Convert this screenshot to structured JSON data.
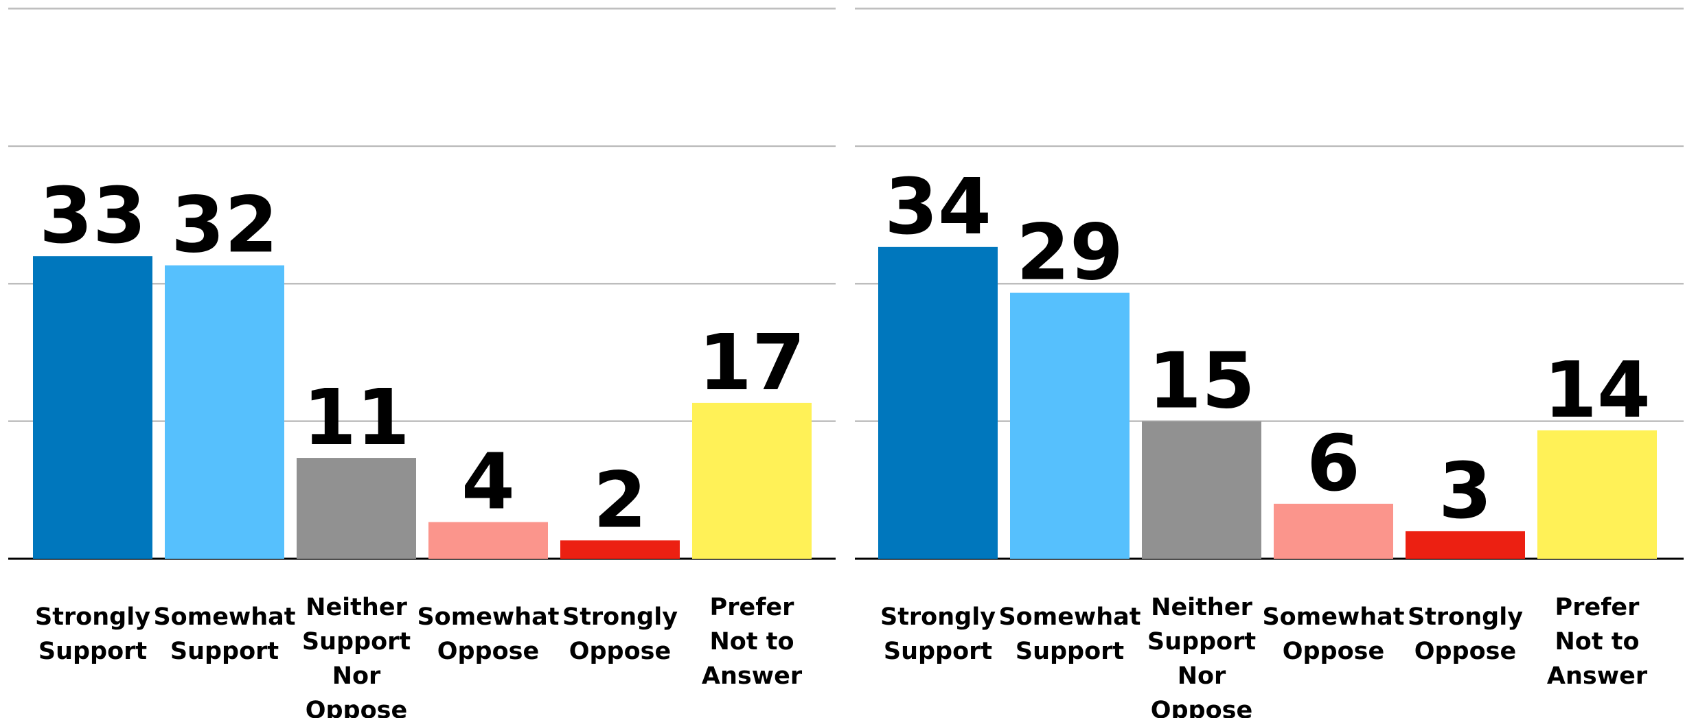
{
  "chart_data": [
    {
      "type": "bar",
      "categories": [
        "Strongly\nSupport",
        "Somewhat\nSupport",
        "Neither\nSupport\nNor\nOppose",
        "Somewhat\nOppose",
        "Strongly\nOppose",
        "Prefer\nNot to\nAnswer"
      ],
      "values": [
        33,
        32,
        11,
        4,
        2,
        17
      ],
      "colors": [
        "#0077bd",
        "#56c0fd",
        "#919191",
        "#fb958c",
        "#ec2012",
        "#fff157"
      ],
      "ylim": [
        0,
        60
      ],
      "yticks": [
        0,
        15,
        30,
        45,
        60
      ],
      "grid": true
    },
    {
      "type": "bar",
      "categories": [
        "Strongly\nSupport",
        "Somewhat\nSupport",
        "Neither\nSupport\nNor\nOppose",
        "Somewhat\nOppose",
        "Strongly\nOppose",
        "Prefer\nNot to\nAnswer"
      ],
      "values": [
        34,
        29,
        15,
        6,
        3,
        14
      ],
      "colors": [
        "#0077bd",
        "#56c0fd",
        "#919191",
        "#fb958c",
        "#ec2012",
        "#fff157"
      ],
      "ylim": [
        0,
        60
      ],
      "yticks": [
        0,
        15,
        30,
        45,
        60
      ],
      "grid": true
    }
  ]
}
